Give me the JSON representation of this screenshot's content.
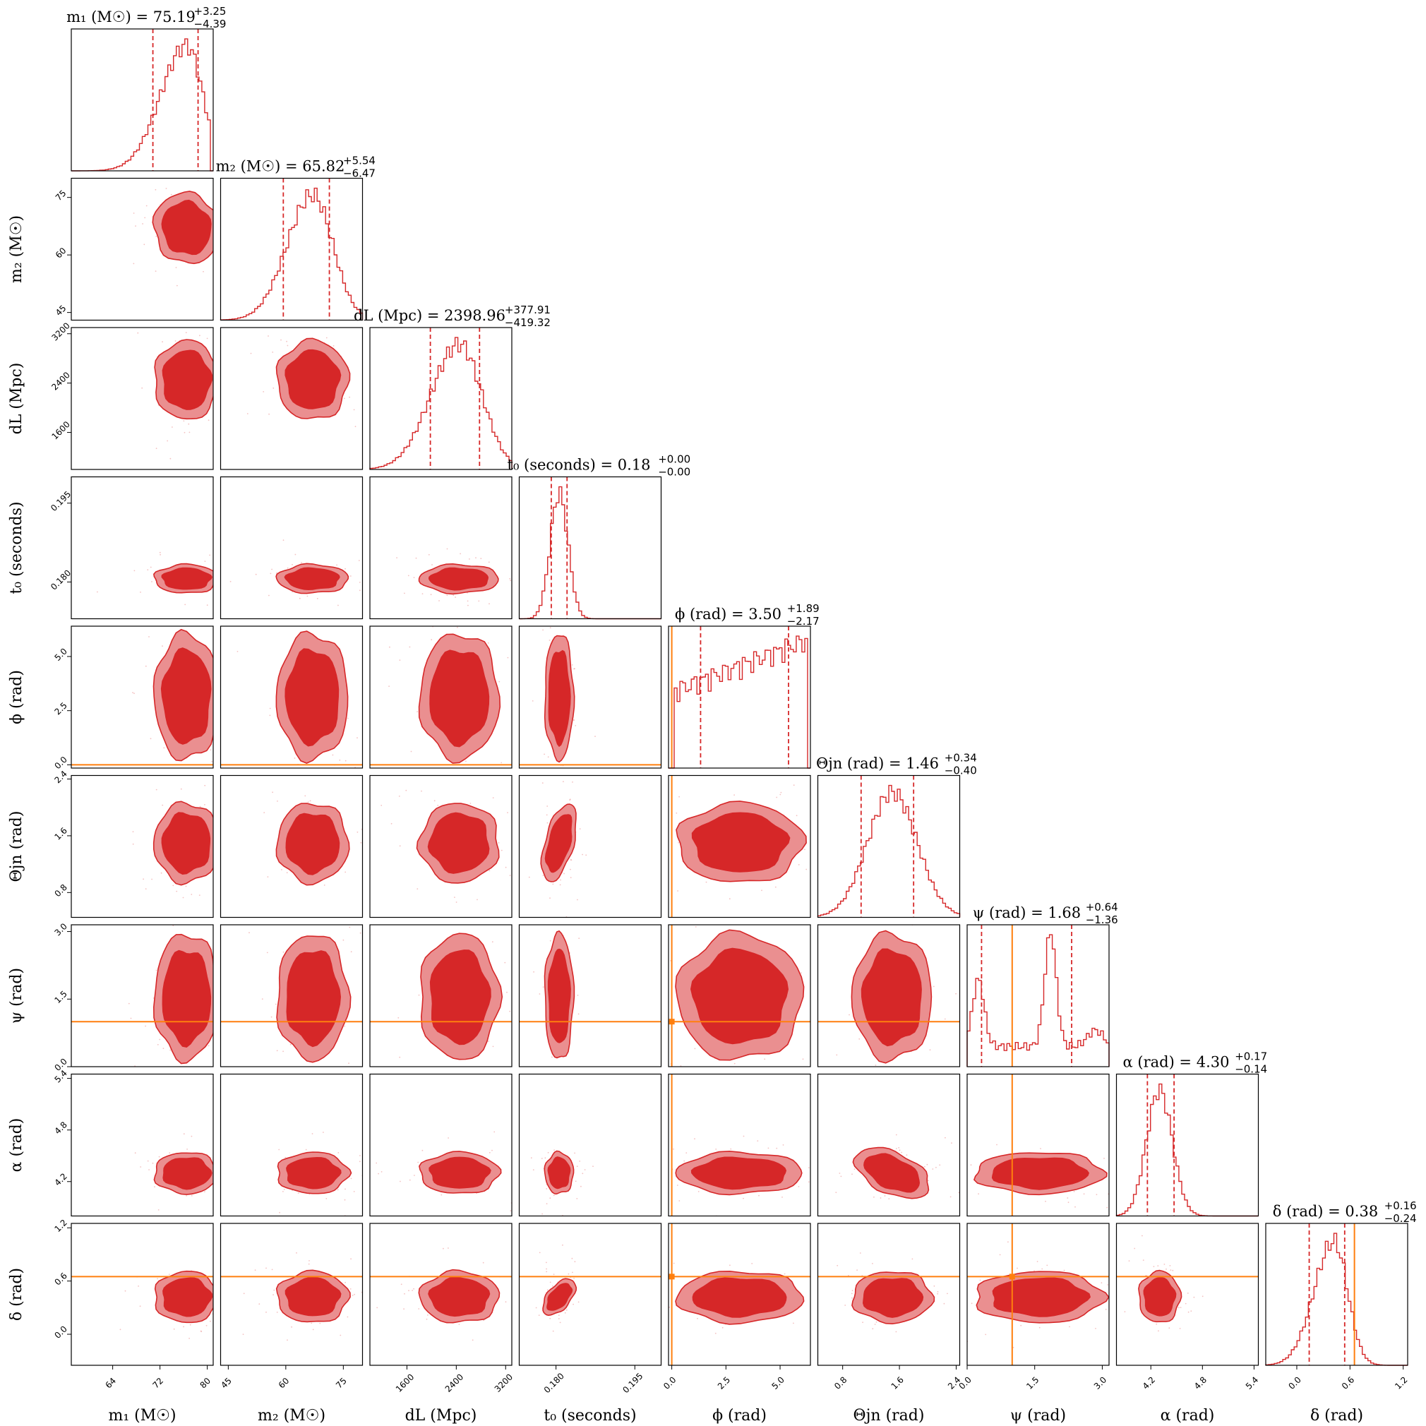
{
  "chart_data": {
    "type": "corner",
    "colors": {
      "posterior": "#d62728",
      "fill_inner": "#d62728",
      "fill_outer": "#ea8f90",
      "truth": "#ff7f0e"
    },
    "parameters": [
      {
        "key": "m1",
        "label": "m₁ (M☉)",
        "title": "m₁ (M☉) = 75.19",
        "median": 75.19,
        "err_plus": "+3.25",
        "err_minus": "−4.39",
        "range": [
          57,
          81
        ],
        "ticks": [
          "64",
          "72",
          "80"
        ],
        "tick_values": [
          64,
          72,
          80
        ],
        "center": 76.5,
        "sd": 3.4,
        "skew": -0.6,
        "ql": 70.8,
        "qh": 78.44
      },
      {
        "key": "m2",
        "label": "m₂ (M☉)",
        "title": "m₂ (M☉) = 65.82",
        "median": 65.82,
        "err_plus": "+5.54",
        "err_minus": "−6.47",
        "range": [
          43,
          80
        ],
        "ticks": [
          "45",
          "60",
          "75"
        ],
        "tick_values": [
          45,
          60,
          75
        ],
        "center": 67,
        "sd": 5.8,
        "skew": -0.3,
        "ql": 59.35,
        "qh": 71.36
      },
      {
        "key": "dL",
        "label": "dL (Mpc)",
        "title": "dL (Mpc) = 2398.96",
        "median": 2398.96,
        "err_plus": "+377.91",
        "err_minus": "−419.32",
        "range": [
          1000,
          3300
        ],
        "ticks": [
          "1600",
          "2400",
          "3200"
        ],
        "tick_values": [
          1600,
          2400,
          3200
        ],
        "center": 2450,
        "sd": 400,
        "skew": -0.3,
        "ql": 1979.64,
        "qh": 2776.87
      },
      {
        "key": "t0",
        "label": "t₀ (seconds)",
        "title": "t₀ (seconds) = 0.18",
        "median": 0.18,
        "err_plus": "+0.00",
        "err_minus": "−0.00",
        "range": [
          0.173,
          0.2
        ],
        "ticks": [
          "0.180",
          "0.195"
        ],
        "tick_values": [
          0.18,
          0.195
        ],
        "center": 0.1806,
        "sd": 0.0017,
        "skew": 0,
        "ql": 0.1791,
        "qh": 0.1821
      },
      {
        "key": "phi",
        "label": "ϕ (rad)",
        "title": "ϕ (rad) = 3.50",
        "median": 3.5,
        "err_plus": "+1.89",
        "err_minus": "−2.17",
        "range": [
          -0.15,
          6.4
        ],
        "ticks": [
          "0.0",
          "2.5",
          "5.0"
        ],
        "tick_values": [
          0,
          2.5,
          5
        ],
        "center": 3.5,
        "sd": 3,
        "skew": 0,
        "ql": 1.33,
        "qh": 5.39,
        "truth": 0
      },
      {
        "key": "theta",
        "label": "Θjn (rad)",
        "title": "Θjn (rad) = 1.46",
        "median": 1.46,
        "err_plus": "+0.34",
        "err_minus": "−0.40",
        "range": [
          0.45,
          2.45
        ],
        "ticks": [
          "0.8",
          "1.6",
          "2.4"
        ],
        "tick_values": [
          0.8,
          1.6,
          2.4
        ],
        "center": 1.5,
        "sd": 0.35,
        "skew": 0,
        "ql": 1.06,
        "qh": 1.8
      },
      {
        "key": "psi",
        "label": "ψ (rad)",
        "title": "ψ (rad) = 1.68",
        "median": 1.68,
        "err_plus": "+0.64",
        "err_minus": "−1.36",
        "range": [
          0,
          3.15
        ],
        "ticks": [
          "0.0",
          "1.5",
          "3.0"
        ],
        "tick_values": [
          0,
          1.5,
          3
        ],
        "center": 1.6,
        "sd": 0.9,
        "skew": 0,
        "ql": 0.32,
        "qh": 2.32,
        "truth": 1.0
      },
      {
        "key": "alpha",
        "label": "α (rad)",
        "title": "α (rad) = 4.30",
        "median": 4.3,
        "err_plus": "+0.17",
        "err_minus": "−0.14",
        "range": [
          3.8,
          5.45
        ],
        "ticks": [
          "4.2",
          "4.8",
          "5.4"
        ],
        "tick_values": [
          4.2,
          4.8,
          5.4
        ],
        "center": 4.3,
        "sd": 0.15,
        "skew": 0,
        "ql": 4.16,
        "qh": 4.47
      },
      {
        "key": "delta",
        "label": "δ (rad)",
        "title": "δ (rad) = 0.38",
        "median": 0.38,
        "err_plus": "+0.16",
        "err_minus": "−0.24",
        "range": [
          -0.35,
          1.25
        ],
        "ticks": [
          "0.0",
          "0.6",
          "1.2"
        ],
        "tick_values": [
          0,
          0.6,
          1.2
        ],
        "center": 0.42,
        "sd": 0.18,
        "skew": -0.5,
        "ql": 0.14,
        "qh": 0.54,
        "truth": 0.65
      }
    ]
  }
}
